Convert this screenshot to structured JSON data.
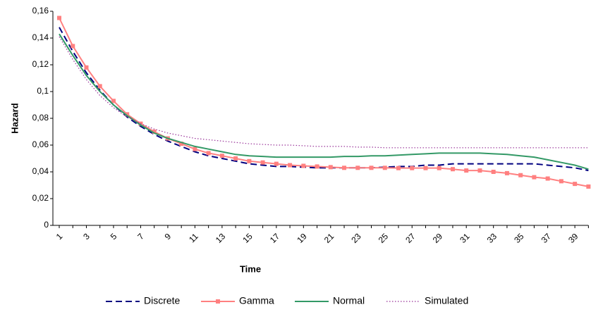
{
  "chart_data": {
    "type": "line",
    "x_label": "Time",
    "y_label": "Hazard",
    "categories": [
      "1",
      null,
      "3",
      null,
      "5",
      null,
      "7",
      null,
      "9",
      null,
      "11",
      null,
      "13",
      null,
      "15",
      null,
      "17",
      null,
      "19",
      null,
      "21",
      null,
      "23",
      null,
      "25",
      null,
      "27",
      null,
      "29",
      null,
      "31",
      null,
      "33",
      null,
      "35",
      null,
      "37",
      null,
      "39",
      null
    ],
    "ylim": [
      0,
      0.16
    ],
    "yticks": [
      0,
      {
        "value": 0.02,
        "label": "0,02"
      },
      {
        "value": 0.04,
        "label": "0,04"
      },
      {
        "value": 0.06,
        "label": "0,06"
      },
      {
        "value": 0.08,
        "label": "0,08"
      },
      {
        "value": 0.1,
        "label": "0,1"
      },
      {
        "value": 0.12,
        "label": "0,12"
      },
      {
        "value": 0.14,
        "label": "0,14"
      },
      {
        "value": 0.16,
        "label": "0,16"
      }
    ],
    "grid": false,
    "legend": "bottom",
    "series": [
      {
        "name": "Discrete",
        "color": "#000080",
        "dash": "dashed",
        "marker": "none",
        "values": [
          0.148,
          0.13,
          0.114,
          0.101,
          0.09,
          0.081,
          0.074,
          0.068,
          0.063,
          0.059,
          0.055,
          0.052,
          0.05,
          0.048,
          0.046,
          0.045,
          0.044,
          0.044,
          0.0435,
          0.043,
          0.043,
          0.043,
          0.043,
          0.043,
          0.0435,
          0.044,
          0.044,
          0.045,
          0.045,
          0.046,
          0.046,
          0.046,
          0.046,
          0.046,
          0.046,
          0.046,
          0.045,
          0.044,
          0.043,
          0.041
        ]
      },
      {
        "name": "Gamma",
        "color": "#ff8080",
        "dash": "solid",
        "marker": "square",
        "values": [
          0.155,
          0.134,
          0.118,
          0.104,
          0.093,
          0.083,
          0.076,
          0.07,
          0.065,
          0.061,
          0.057,
          0.054,
          0.052,
          0.05,
          0.048,
          0.047,
          0.046,
          0.045,
          0.0445,
          0.044,
          0.0435,
          0.043,
          0.043,
          0.043,
          0.043,
          0.0428,
          0.0428,
          0.0428,
          0.0428,
          0.042,
          0.041,
          0.041,
          0.04,
          0.039,
          0.0375,
          0.036,
          0.035,
          0.033,
          0.031,
          0.029
        ]
      },
      {
        "name": "Normal",
        "color": "#339966",
        "dash": "solid",
        "marker": "none",
        "values": [
          0.143,
          0.127,
          0.112,
          0.1,
          0.09,
          0.082,
          0.075,
          0.069,
          0.065,
          0.062,
          0.059,
          0.057,
          0.055,
          0.053,
          0.052,
          0.0515,
          0.051,
          0.051,
          0.051,
          0.051,
          0.051,
          0.0515,
          0.0515,
          0.052,
          0.052,
          0.0525,
          0.053,
          0.0535,
          0.054,
          0.054,
          0.054,
          0.054,
          0.0535,
          0.053,
          0.052,
          0.051,
          0.049,
          0.047,
          0.045,
          0.042
        ]
      },
      {
        "name": "Simulated",
        "color": "#993399",
        "dash": "dotted",
        "marker": "none",
        "values": [
          0.141,
          0.124,
          0.109,
          0.097,
          0.088,
          0.081,
          0.076,
          0.072,
          0.069,
          0.067,
          0.065,
          0.064,
          0.063,
          0.062,
          0.061,
          0.0605,
          0.06,
          0.06,
          0.0595,
          0.059,
          0.059,
          0.059,
          0.0585,
          0.0585,
          0.058,
          0.058,
          0.058,
          0.058,
          0.058,
          0.058,
          0.058,
          0.058,
          0.058,
          0.058,
          0.058,
          0.058,
          0.058,
          0.058,
          0.058,
          0.058
        ]
      }
    ]
  }
}
